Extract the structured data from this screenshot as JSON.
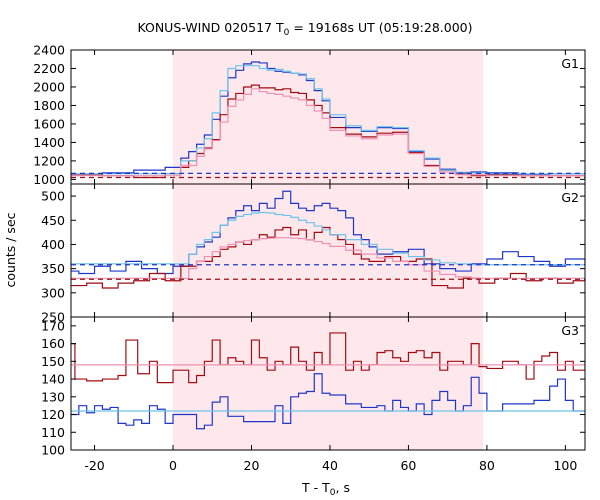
{
  "chart_data": {
    "type": "line",
    "title": "KONUS-WIND 020517 T",
    "title_sub": "0",
    "title_rest": " = 19168s UT (05:19:28.000)",
    "xlabel": "T - T",
    "xlabel_sub": "0",
    "xlabel_rest": ", s",
    "ylabel": "counts / sec",
    "xlim": [
      -26,
      105
    ],
    "xticks": [
      -20,
      0,
      20,
      40,
      60,
      80,
      100
    ],
    "shaded_interval": [
      0,
      79
    ],
    "colors": {
      "background_shade": "#ffe8ec",
      "blue": "#1f37c8",
      "dark_red": "#a00c12",
      "light_blue": "#6cc4e8",
      "pink": "#ee90b4"
    },
    "panels": [
      {
        "label": "G1",
        "ylim": [
          950,
          2400
        ],
        "yticks": [
          1000,
          1200,
          1400,
          1600,
          1800,
          2000,
          2200,
          2400
        ],
        "series": [
          {
            "color": "blue",
            "style": "step",
            "x": [
              -26,
              -18,
              -10,
              -2,
              2,
              4,
              6,
              8,
              10,
              12,
              14,
              16,
              18,
              20,
              22,
              24,
              26,
              28,
              30,
              32,
              34,
              36,
              38,
              40,
              44,
              48,
              52,
              56,
              60,
              64,
              68,
              72,
              76,
              80,
              88,
              96,
              105
            ],
            "y": [
              1045,
              1070,
              1100,
              1130,
              1230,
              1300,
              1380,
              1480,
              1650,
              1900,
              2100,
              2180,
              2250,
              2270,
              2260,
              2200,
              2170,
              2160,
              2150,
              2130,
              2070,
              1960,
              1850,
              1670,
              1560,
              1520,
              1560,
              1550,
              1300,
              1220,
              1110,
              1075,
              1080,
              1070,
              1055,
              1060,
              1060
            ]
          },
          {
            "color": "dark_red",
            "style": "step",
            "x": [
              -26,
              -18,
              -10,
              -2,
              2,
              4,
              6,
              8,
              10,
              12,
              14,
              16,
              18,
              20,
              22,
              24,
              26,
              28,
              30,
              32,
              34,
              36,
              38,
              40,
              44,
              48,
              52,
              56,
              60,
              64,
              68,
              72,
              76,
              80,
              88,
              96,
              105
            ],
            "y": [
              1045,
              1040,
              1020,
              1060,
              1130,
              1200,
              1280,
              1340,
              1430,
              1700,
              1870,
              1930,
              2000,
              2020,
              1990,
              1990,
              1970,
              1980,
              1940,
              1930,
              1860,
              1800,
              1720,
              1560,
              1490,
              1460,
              1500,
              1510,
              1290,
              1150,
              1100,
              1060,
              1040,
              1050,
              1040,
              1040,
              1040
            ]
          },
          {
            "color": "light_blue",
            "style": "step",
            "x": [
              -26,
              -2,
              2,
              6,
              8,
              10,
              12,
              14,
              16,
              18,
              20,
              22,
              24,
              26,
              28,
              30,
              32,
              34,
              36,
              38,
              40,
              44,
              48,
              52,
              56,
              60,
              64,
              68,
              72,
              80,
              105
            ],
            "y": [
              1060,
              1060,
              1200,
              1340,
              1440,
              1720,
              1960,
              2200,
              2230,
              2230,
              2230,
              2200,
              2180,
              2190,
              2170,
              2150,
              2140,
              2090,
              1980,
              1870,
              1700,
              1580,
              1530,
              1570,
              1560,
              1310,
              1230,
              1100,
              1070,
              1060,
              1060
            ]
          },
          {
            "color": "pink",
            "style": "step",
            "x": [
              -26,
              -2,
              2,
              6,
              8,
              10,
              12,
              14,
              16,
              18,
              20,
              22,
              24,
              26,
              28,
              30,
              32,
              34,
              36,
              38,
              40,
              44,
              48,
              52,
              56,
              60,
              64,
              68,
              72,
              80,
              105
            ],
            "y": [
              1040,
              1040,
              1150,
              1250,
              1330,
              1420,
              1620,
              1790,
              1860,
              1920,
              1980,
              1950,
              1930,
              1920,
              1900,
              1880,
              1860,
              1800,
              1740,
              1660,
              1530,
              1470,
              1440,
              1480,
              1490,
              1280,
              1140,
              1080,
              1050,
              1040,
              1040
            ]
          },
          {
            "color": "blue",
            "style": "dashed",
            "x": [
              -26,
              105
            ],
            "y": [
              1065,
              1065
            ]
          },
          {
            "color": "dark_red",
            "style": "dashed",
            "x": [
              -26,
              105
            ],
            "y": [
              1020,
              1020
            ]
          }
        ]
      },
      {
        "label": "G2",
        "ylim": [
          250,
          525
        ],
        "yticks": [
          250,
          300,
          350,
          400,
          450,
          500
        ],
        "series": [
          {
            "color": "blue",
            "style": "step",
            "x": [
              -26,
              -24,
              -20,
              -16,
              -12,
              -8,
              -4,
              0,
              4,
              6,
              8,
              10,
              12,
              14,
              16,
              18,
              20,
              22,
              24,
              26,
              28,
              30,
              32,
              34,
              36,
              38,
              40,
              42,
              44,
              46,
              48,
              50,
              52,
              56,
              60,
              64,
              68,
              72,
              76,
              80,
              84,
              88,
              92,
              96,
              100,
              105
            ],
            "y": [
              345,
              340,
              355,
              345,
              365,
              350,
              340,
              355,
              380,
              395,
              405,
              415,
              440,
              455,
              470,
              480,
              470,
              485,
              475,
              495,
              510,
              485,
              475,
              470,
              480,
              485,
              475,
              470,
              455,
              420,
              410,
              395,
              380,
              385,
              390,
              360,
              350,
              345,
              360,
              370,
              385,
              375,
              365,
              355,
              370,
              360
            ]
          },
          {
            "color": "dark_red",
            "style": "step",
            "x": [
              -26,
              -22,
              -18,
              -14,
              -10,
              -6,
              -2,
              2,
              6,
              10,
              12,
              14,
              16,
              18,
              20,
              22,
              24,
              26,
              28,
              30,
              32,
              34,
              36,
              38,
              40,
              42,
              44,
              46,
              48,
              50,
              54,
              58,
              62,
              66,
              70,
              74,
              78,
              82,
              86,
              90,
              94,
              98,
              102,
              105
            ],
            "y": [
              315,
              320,
              310,
              320,
              325,
              340,
              325,
              355,
              365,
              375,
              390,
              395,
              405,
              400,
              410,
              420,
              415,
              430,
              435,
              420,
              430,
              410,
              425,
              435,
              420,
              410,
              400,
              380,
              370,
              365,
              375,
              365,
              370,
              315,
              310,
              330,
              320,
              330,
              340,
              325,
              330,
              320,
              325,
              325
            ]
          },
          {
            "color": "light_blue",
            "style": "step",
            "x": [
              -26,
              0,
              4,
              6,
              8,
              10,
              12,
              14,
              16,
              18,
              20,
              22,
              24,
              26,
              28,
              30,
              32,
              34,
              36,
              38,
              40,
              44,
              48,
              52,
              56,
              60,
              64,
              68,
              72,
              76,
              80,
              105
            ],
            "y": [
              360,
              360,
              380,
              400,
              410,
              425,
              440,
              450,
              458,
              462,
              465,
              466,
              465,
              462,
              460,
              456,
              450,
              445,
              438,
              430,
              420,
              410,
              400,
              390,
              382,
              375,
              368,
              362,
              360,
              358,
              358,
              358
            ]
          },
          {
            "color": "pink",
            "style": "step",
            "x": [
              -26,
              0,
              4,
              6,
              8,
              10,
              12,
              14,
              16,
              18,
              20,
              22,
              24,
              26,
              28,
              30,
              32,
              34,
              36,
              38,
              40,
              44,
              48,
              52,
              56,
              60,
              64,
              68,
              72,
              76,
              80,
              105
            ],
            "y": [
              330,
              330,
              350,
              365,
              375,
              385,
              395,
              400,
              405,
              408,
              410,
              412,
              413,
              414,
              414,
              413,
              412,
              410,
              406,
              402,
              396,
              388,
              380,
              372,
              365,
              358,
              345,
              338,
              333,
              330,
              330,
              330
            ]
          },
          {
            "color": "blue",
            "style": "dashed",
            "x": [
              -26,
              105
            ],
            "y": [
              358,
              358
            ]
          },
          {
            "color": "dark_red",
            "style": "dashed",
            "x": [
              -26,
              105
            ],
            "y": [
              328,
              328
            ]
          }
        ]
      },
      {
        "label": "G3",
        "ylim": [
          100,
          175
        ],
        "yticks": [
          100,
          110,
          120,
          130,
          140,
          150,
          160,
          170
        ],
        "series": [
          {
            "color": "dark_red",
            "style": "step",
            "x": [
              -26,
              -25,
              -22,
              -18,
              -14,
              -12,
              -9,
              -6,
              -4,
              0,
              4,
              6,
              8,
              10,
              12,
              14,
              16,
              18,
              20,
              22,
              24,
              26,
              28,
              30,
              32,
              34,
              36,
              38,
              40,
              44,
              46,
              48,
              50,
              52,
              54,
              56,
              58,
              60,
              62,
              64,
              66,
              68,
              70,
              72,
              74,
              76,
              78,
              80,
              84,
              88,
              90,
              92,
              94,
              96,
              98,
              100,
              102,
              105
            ],
            "y": [
              160,
              140,
              139,
              140,
              142,
              162,
              143,
              150,
              138,
              145,
              138,
              142,
              150,
              162,
              148,
              152,
              150,
              148,
              162,
              152,
              145,
              150,
              148,
              158,
              150,
              145,
              155,
              148,
              166,
              145,
              150,
              145,
              148,
              155,
              156,
              152,
              150,
              155,
              156,
              152,
              155,
              145,
              150,
              150,
              148,
              160,
              147,
              146,
              150,
              148,
              140,
              150,
              153,
              155,
              145,
              150,
              145,
              150
            ]
          },
          {
            "color": "blue",
            "style": "step",
            "x": [
              -26,
              -24,
              -22,
              -20,
              -18,
              -16,
              -14,
              -12,
              -10,
              -8,
              -6,
              -4,
              -2,
              0,
              4,
              6,
              8,
              10,
              12,
              14,
              18,
              22,
              26,
              28,
              30,
              32,
              34,
              36,
              38,
              40,
              44,
              48,
              52,
              54,
              56,
              58,
              60,
              62,
              64,
              66,
              68,
              70,
              72,
              74,
              76,
              78,
              80,
              84,
              88,
              92,
              96,
              98,
              100,
              102,
              105
            ],
            "y": [
              120,
              125,
              121,
              125,
              123,
              124,
              115,
              114,
              117,
              115,
              125,
              123,
              115,
              120,
              120,
              112,
              114,
              127,
              130,
              119,
              116,
              116,
              125,
              115,
              130,
              132,
              133,
              143,
              132,
              131,
              126,
              124,
              125,
              122,
              128,
              124,
              122,
              126,
              120,
              128,
              133,
              128,
              122,
              125,
              141,
              132,
              122,
              126,
              126,
              128,
              136,
              140,
              128,
              122,
              122
            ]
          },
          {
            "color": "pink",
            "style": "solid",
            "x": [
              -26,
              105
            ],
            "y": [
              148,
              148
            ]
          },
          {
            "color": "light_blue",
            "style": "solid",
            "x": [
              -26,
              105
            ],
            "y": [
              122,
              122
            ]
          }
        ]
      }
    ]
  }
}
